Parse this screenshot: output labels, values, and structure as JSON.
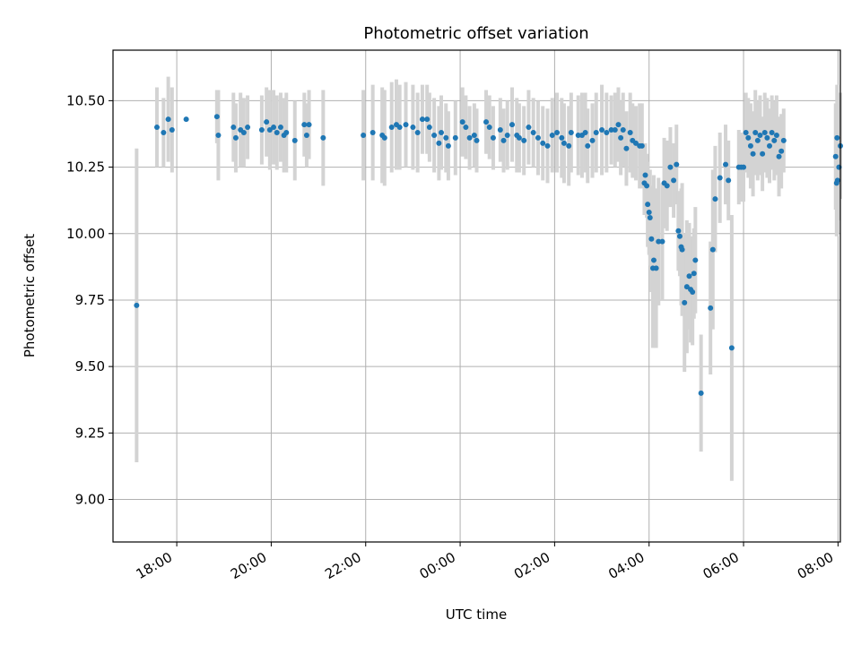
{
  "chart_data": {
    "type": "scatter",
    "title": "Photometric offset variation",
    "xlabel": "UTC time",
    "ylabel": "Photometric offset",
    "x_tick_labels": [
      "18:00",
      "20:00",
      "22:00",
      "00:00",
      "02:00",
      "04:00",
      "06:00",
      "08:00"
    ],
    "y_tick_labels": [
      "9.00",
      "9.25",
      "9.50",
      "9.75",
      "10.00",
      "10.25",
      "10.50"
    ],
    "y_ticks": [
      9.0,
      9.25,
      9.5,
      9.75,
      10.0,
      10.25,
      10.5
    ],
    "x_ticks_hours": [
      18,
      20,
      22,
      24,
      26,
      28,
      30,
      32
    ],
    "xlim_hours": [
      16.65,
      32.05
    ],
    "ylim": [
      8.84,
      10.69
    ],
    "grid": true,
    "colors": {
      "point": "#1f77b4",
      "errorbar": "#d3d3d3",
      "grid": "#b0b0b0"
    },
    "series": [
      {
        "points": [
          [
            17.15,
            9.73,
            0.59
          ],
          [
            17.58,
            10.4,
            0.15
          ],
          [
            17.72,
            10.38,
            0.13
          ],
          [
            17.82,
            10.43,
            0.16
          ],
          [
            17.9,
            10.39,
            0.16
          ],
          [
            18.2,
            10.43,
            0.0
          ],
          [
            18.85,
            10.44,
            0.1
          ],
          [
            18.88,
            10.37,
            0.17
          ],
          [
            19.2,
            10.4,
            0.13
          ],
          [
            19.25,
            10.36,
            0.13
          ],
          [
            19.35,
            10.39,
            0.14
          ],
          [
            19.42,
            10.38,
            0.13
          ],
          [
            19.5,
            10.4,
            0.12
          ],
          [
            19.8,
            10.39,
            0.13
          ],
          [
            19.9,
            10.42,
            0.13
          ],
          [
            19.97,
            10.39,
            0.15
          ],
          [
            20.05,
            10.4,
            0.14
          ],
          [
            20.12,
            10.38,
            0.14
          ],
          [
            20.2,
            10.4,
            0.13
          ],
          [
            20.27,
            10.37,
            0.14
          ],
          [
            20.32,
            10.38,
            0.15
          ],
          [
            20.5,
            10.35,
            0.15
          ],
          [
            20.7,
            10.41,
            0.12
          ],
          [
            20.75,
            10.37,
            0.12
          ],
          [
            20.8,
            10.41,
            0.13
          ],
          [
            21.1,
            10.36,
            0.18
          ],
          [
            21.95,
            10.37,
            0.17
          ],
          [
            22.15,
            10.38,
            0.18
          ],
          [
            22.35,
            10.37,
            0.18
          ],
          [
            22.4,
            10.36,
            0.18
          ],
          [
            22.55,
            10.4,
            0.17
          ],
          [
            22.65,
            10.41,
            0.17
          ],
          [
            22.72,
            10.4,
            0.16
          ],
          [
            22.85,
            10.41,
            0.16
          ],
          [
            23.0,
            10.4,
            0.16
          ],
          [
            23.1,
            10.38,
            0.15
          ],
          [
            23.2,
            10.43,
            0.13
          ],
          [
            23.3,
            10.43,
            0.13
          ],
          [
            23.35,
            10.4,
            0.13
          ],
          [
            23.45,
            10.37,
            0.14
          ],
          [
            23.55,
            10.34,
            0.14
          ],
          [
            23.6,
            10.38,
            0.14
          ],
          [
            23.7,
            10.36,
            0.13
          ],
          [
            23.75,
            10.33,
            0.13
          ],
          [
            23.9,
            10.36,
            0.14
          ],
          [
            24.05,
            10.42,
            0.13
          ],
          [
            24.12,
            10.4,
            0.12
          ],
          [
            24.2,
            10.36,
            0.12
          ],
          [
            24.3,
            10.37,
            0.12
          ],
          [
            24.35,
            10.35,
            0.12
          ],
          [
            24.55,
            10.42,
            0.12
          ],
          [
            24.62,
            10.4,
            0.12
          ],
          [
            24.7,
            10.36,
            0.12
          ],
          [
            24.85,
            10.39,
            0.12
          ],
          [
            24.92,
            10.35,
            0.12
          ],
          [
            25.0,
            10.37,
            0.13
          ],
          [
            25.1,
            10.41,
            0.14
          ],
          [
            25.2,
            10.37,
            0.14
          ],
          [
            25.25,
            10.36,
            0.13
          ],
          [
            25.35,
            10.35,
            0.13
          ],
          [
            25.45,
            10.4,
            0.14
          ],
          [
            25.55,
            10.38,
            0.13
          ],
          [
            25.65,
            10.36,
            0.14
          ],
          [
            25.75,
            10.34,
            0.14
          ],
          [
            25.85,
            10.33,
            0.14
          ],
          [
            25.95,
            10.37,
            0.14
          ],
          [
            26.05,
            10.38,
            0.15
          ],
          [
            26.15,
            10.36,
            0.15
          ],
          [
            26.2,
            10.34,
            0.15
          ],
          [
            26.3,
            10.33,
            0.15
          ],
          [
            26.35,
            10.38,
            0.15
          ],
          [
            26.5,
            10.37,
            0.15
          ],
          [
            26.58,
            10.37,
            0.16
          ],
          [
            26.65,
            10.38,
            0.15
          ],
          [
            26.7,
            10.33,
            0.14
          ],
          [
            26.8,
            10.35,
            0.14
          ],
          [
            26.88,
            10.38,
            0.15
          ],
          [
            27.0,
            10.39,
            0.17
          ],
          [
            27.1,
            10.38,
            0.15
          ],
          [
            27.2,
            10.39,
            0.13
          ],
          [
            27.28,
            10.39,
            0.14
          ],
          [
            27.35,
            10.41,
            0.14
          ],
          [
            27.4,
            10.36,
            0.14
          ],
          [
            27.45,
            10.39,
            0.14
          ],
          [
            27.52,
            10.32,
            0.14
          ],
          [
            27.6,
            10.38,
            0.15
          ],
          [
            27.65,
            10.35,
            0.14
          ],
          [
            27.72,
            10.34,
            0.14
          ],
          [
            27.8,
            10.33,
            0.16
          ],
          [
            27.85,
            10.33,
            0.16
          ],
          [
            27.9,
            10.19,
            0.12
          ],
          [
            27.92,
            10.22,
            0.12
          ],
          [
            27.95,
            10.18,
            0.12
          ],
          [
            27.97,
            10.11,
            0.16
          ],
          [
            28.0,
            10.08,
            0.16
          ],
          [
            28.02,
            10.06,
            0.18
          ],
          [
            28.05,
            9.98,
            0.2
          ],
          [
            28.08,
            9.87,
            0.3
          ],
          [
            28.1,
            9.9,
            0.32
          ],
          [
            28.15,
            9.87,
            0.3
          ],
          [
            28.2,
            9.97,
            0.24
          ],
          [
            28.28,
            9.97,
            0.22
          ],
          [
            28.32,
            10.19,
            0.17
          ],
          [
            28.38,
            10.18,
            0.17
          ],
          [
            28.45,
            10.25,
            0.15
          ],
          [
            28.52,
            10.2,
            0.14
          ],
          [
            28.58,
            10.26,
            0.15
          ],
          [
            28.62,
            10.01,
            0.15
          ],
          [
            28.65,
            9.99,
            0.15
          ],
          [
            28.68,
            9.95,
            0.22
          ],
          [
            28.7,
            9.94,
            0.25
          ],
          [
            28.75,
            9.74,
            0.26
          ],
          [
            28.8,
            9.8,
            0.25
          ],
          [
            28.85,
            9.84,
            0.2
          ],
          [
            28.88,
            9.79,
            0.2
          ],
          [
            28.92,
            9.78,
            0.2
          ],
          [
            28.95,
            9.85,
            0.17
          ],
          [
            28.98,
            9.9,
            0.2
          ],
          [
            29.1,
            9.4,
            0.22
          ],
          [
            29.3,
            9.72,
            0.25
          ],
          [
            29.35,
            9.94,
            0.3
          ],
          [
            29.4,
            10.13,
            0.2
          ],
          [
            29.5,
            10.21,
            0.17
          ],
          [
            29.62,
            10.26,
            0.15
          ],
          [
            29.68,
            10.2,
            0.15
          ],
          [
            29.75,
            9.57,
            0.5
          ],
          [
            29.9,
            10.25,
            0.14
          ],
          [
            29.95,
            10.25,
            0.13
          ],
          [
            30.0,
            10.25,
            0.13
          ],
          [
            30.05,
            10.38,
            0.15
          ],
          [
            30.1,
            10.36,
            0.15
          ],
          [
            30.15,
            10.33,
            0.16
          ],
          [
            30.2,
            10.3,
            0.16
          ],
          [
            30.25,
            10.38,
            0.16
          ],
          [
            30.3,
            10.35,
            0.15
          ],
          [
            30.35,
            10.37,
            0.15
          ],
          [
            30.4,
            10.3,
            0.14
          ],
          [
            30.45,
            10.38,
            0.15
          ],
          [
            30.5,
            10.36,
            0.15
          ],
          [
            30.55,
            10.33,
            0.14
          ],
          [
            30.6,
            10.38,
            0.14
          ],
          [
            30.65,
            10.35,
            0.15
          ],
          [
            30.7,
            10.37,
            0.15
          ],
          [
            30.75,
            10.29,
            0.15
          ],
          [
            30.8,
            10.31,
            0.14
          ],
          [
            30.85,
            10.35,
            0.12
          ],
          [
            31.95,
            10.29,
            0.2
          ],
          [
            31.98,
            10.36,
            0.2
          ],
          [
            32.02,
            10.25,
            0.2
          ],
          [
            31.97,
            10.19,
            0.2
          ],
          [
            31.99,
            10.2,
            0.2
          ],
          [
            32.05,
            10.33,
            0.2
          ]
        ]
      }
    ]
  }
}
